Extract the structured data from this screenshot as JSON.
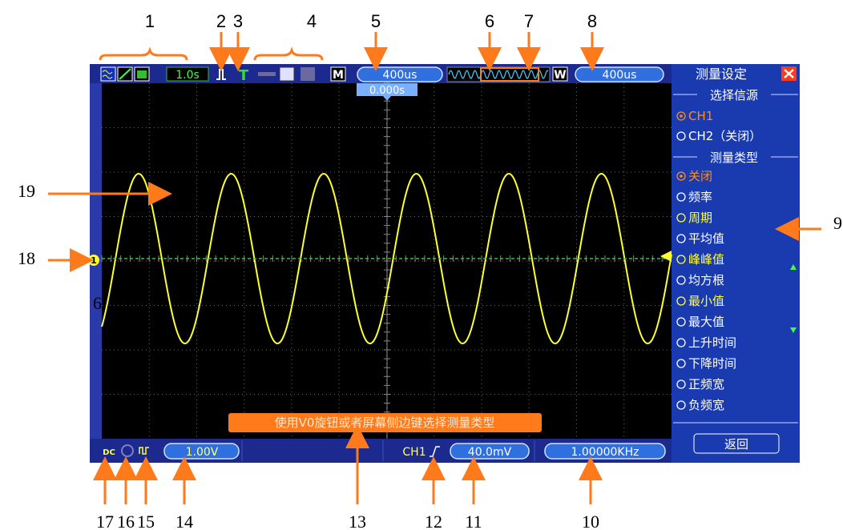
{
  "callouts": {
    "top": [
      "1",
      "2",
      "3",
      "4",
      "5",
      "6",
      "7",
      "8"
    ],
    "right": "9",
    "left": [
      "19",
      "18"
    ],
    "stray": "6",
    "bottom": [
      "17",
      "16",
      "15",
      "14",
      "13",
      "12",
      "11",
      "10"
    ]
  },
  "top_bar": {
    "acq_time": "1.0s",
    "mode": "M",
    "timebase": "400us",
    "trigger_pos": "0.000s",
    "window_mode": "W",
    "window_timebase": "400us"
  },
  "menu": {
    "title": "测量设定",
    "source_heading": "选择信源",
    "sources": [
      {
        "label": "CH1",
        "color": "#ff8c1a",
        "selected": true
      },
      {
        "label": "CH2（关闭）",
        "color": "#ffffff",
        "selected": false
      }
    ],
    "type_heading": "测量类型",
    "types": [
      {
        "label": "关闭",
        "color": "#ff8c1a",
        "selected": true
      },
      {
        "label": "频率",
        "color": "#ffffff",
        "selected": false
      },
      {
        "label": "周期",
        "color": "#ffff40",
        "selected": false
      },
      {
        "label": "平均值",
        "color": "#ffffff",
        "selected": false
      },
      {
        "label": "峰峰值",
        "color": "#ffff40",
        "selected": false
      },
      {
        "label": "均方根",
        "color": "#ffffff",
        "selected": false
      },
      {
        "label": "最小值",
        "color": "#ffff40",
        "selected": false
      },
      {
        "label": "最大值",
        "color": "#ffffff",
        "selected": false
      },
      {
        "label": "上升时间",
        "color": "#ffffff",
        "selected": false
      },
      {
        "label": "下降时间",
        "color": "#ffffff",
        "selected": false
      },
      {
        "label": "正频宽",
        "color": "#ffffff",
        "selected": false
      },
      {
        "label": "负频宽",
        "color": "#ffffff",
        "selected": false
      }
    ],
    "back": "返回"
  },
  "channel_marker": "1",
  "message": "使用V0旋钮或者屏幕侧边键选择测量类型",
  "bottom_bar": {
    "volts_div": "1.00V",
    "trigger_source": "CH1",
    "trigger_level": "40.0mV",
    "frequency": "1.00000KHz"
  }
}
